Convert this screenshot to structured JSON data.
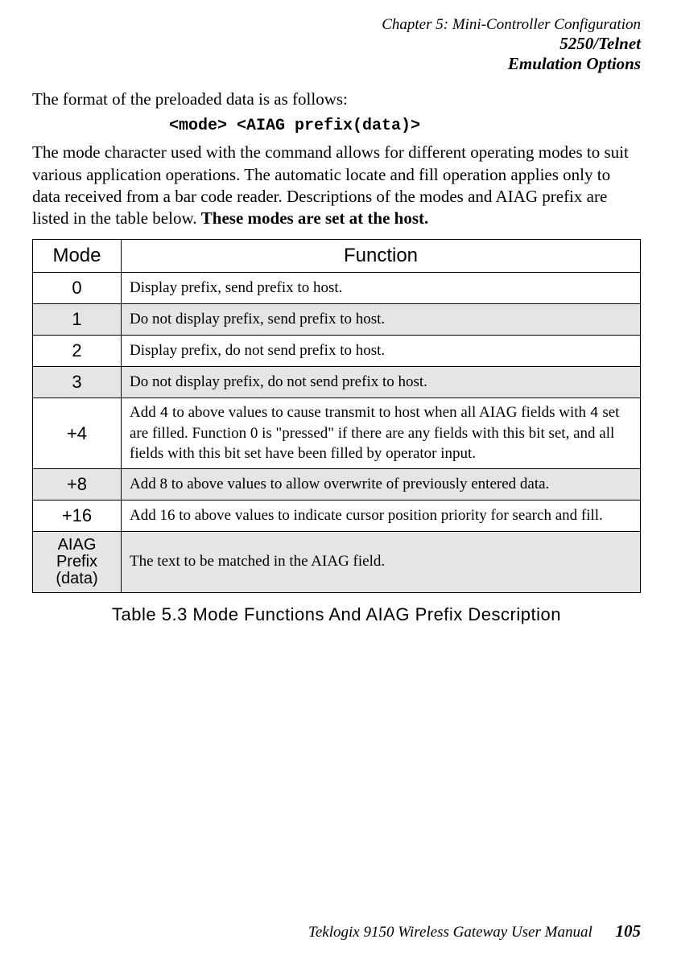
{
  "header": {
    "chapter": "Chapter 5:  Mini-Controller Configuration",
    "section1": "5250/Telnet",
    "section2": "Emulation Options"
  },
  "intro": {
    "line1": "The format of the preloaded data is as follows:",
    "code": "<mode> <AIAG prefix(data)>",
    "para2_part1": "The mode character used with the command allows for different operating modes to suit various application operations. The automatic locate and fill operation applies only to data received from a bar code reader. Descriptions of the modes and AIAG prefix are listed in the table below. ",
    "para2_bold": "These modes are set at the host."
  },
  "table": {
    "headers": {
      "mode": "Mode",
      "function": "Function"
    },
    "rows": [
      {
        "mode": "0",
        "func": "Display prefix, send prefix to host.",
        "gray": false
      },
      {
        "mode": "1",
        "func": "Do not display prefix, send prefix to host.",
        "gray": true
      },
      {
        "mode": "2",
        "func": "Display prefix, do not send prefix to host.",
        "gray": false
      },
      {
        "mode": "3",
        "func": "Do not display prefix, do not send prefix to host.",
        "gray": true
      },
      {
        "mode": "+4",
        "func_parts": {
          "p1": "Add ",
          "c1": "4",
          "p2": " to above values to cause transmit to host when all AIAG fields with ",
          "c2": "4",
          "p3": " set are filled. Function 0 is \"pressed\" if there are any fields with this bit set, and all fields with this bit set have been filled by operator input."
        },
        "gray": false
      },
      {
        "mode": "+8",
        "func": "Add 8 to above values to allow overwrite of previously entered data.",
        "gray": true
      },
      {
        "mode": "+16",
        "func": "Add 16 to above values to indicate cursor position priority for search and fill.",
        "gray": false
      },
      {
        "mode_multi": {
          "l1": "AIAG Prefix",
          "l2": "(data)"
        },
        "func": "The text to be matched in the AIAG field.",
        "gray": true
      }
    ],
    "caption": "Table 5.3 Mode Functions And AIAG Prefix Description"
  },
  "footer": {
    "text": "Teklogix 9150 Wireless Gateway User Manual",
    "page": "105"
  }
}
